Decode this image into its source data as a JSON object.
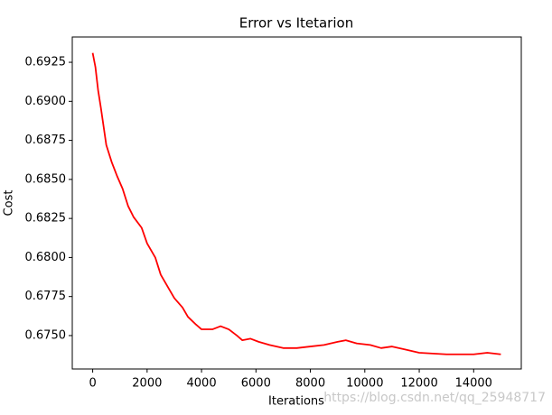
{
  "chart_data": {
    "type": "line",
    "title": "Error vs Itetarion",
    "xlabel": "Iterations",
    "ylabel": "Cost",
    "watermark": "https://blog.csdn.net/qq_25948717",
    "x": [
      0,
      100,
      200,
      300,
      400,
      500,
      700,
      900,
      1100,
      1300,
      1500,
      1800,
      2000,
      2300,
      2500,
      2800,
      3000,
      3300,
      3500,
      3800,
      4000,
      4400,
      4700,
      5000,
      5300,
      5500,
      5800,
      6100,
      6500,
      7000,
      7500,
      8000,
      8500,
      9000,
      9300,
      9700,
      10200,
      10600,
      11000,
      11500,
      12000,
      13000,
      13500,
      14000,
      14500,
      15000
    ],
    "series": [
      {
        "name": "cost",
        "color": "#ff0000",
        "values": [
          0.6931,
          0.6922,
          0.6907,
          0.6896,
          0.6884,
          0.6872,
          0.6861,
          0.6852,
          0.6844,
          0.6833,
          0.6826,
          0.6819,
          0.6809,
          0.68,
          0.6789,
          0.678,
          0.6774,
          0.6768,
          0.6762,
          0.6757,
          0.6754,
          0.6754,
          0.6756,
          0.6754,
          0.675,
          0.6747,
          0.6748,
          0.6746,
          0.6744,
          0.6742,
          0.6742,
          0.6743,
          0.6744,
          0.6746,
          0.6747,
          0.6745,
          0.6744,
          0.6742,
          0.6743,
          0.6741,
          0.6739,
          0.6738,
          0.6738,
          0.6738,
          0.6739,
          0.6738
        ]
      }
    ],
    "xlim": [
      -750,
      15750
    ],
    "xticks": [
      0,
      2000,
      4000,
      6000,
      8000,
      10000,
      12000,
      14000
    ],
    "ylim": [
      0.67286,
      0.69412
    ],
    "yticks": [
      {
        "value": 0.675,
        "label": "0.6750"
      },
      0.6775,
      {
        "value": 0.68,
        "label": "0.6800"
      },
      0.6825,
      {
        "value": 0.685,
        "label": "0.6850"
      },
      0.6875,
      {
        "value": 0.69,
        "label": "0.6900"
      },
      0.6925
    ],
    "grid": false
  }
}
